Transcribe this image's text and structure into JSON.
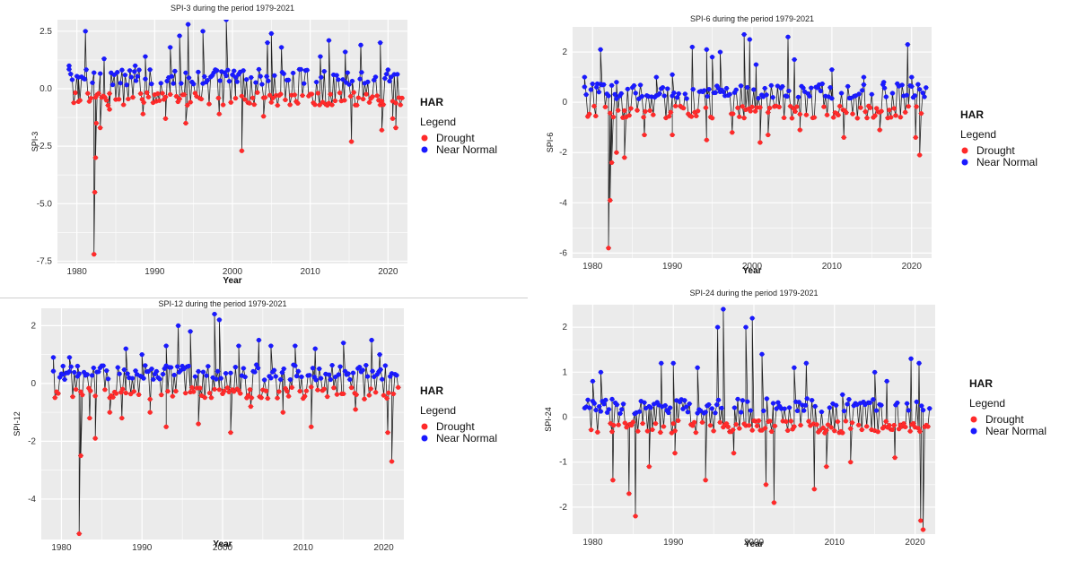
{
  "legend": {
    "title": "HAR",
    "subtitle": "Legend",
    "items": [
      {
        "label": "Drought",
        "color": "#ff2a2a"
      },
      {
        "label": "Near Normal",
        "color": "#1a1aff"
      }
    ]
  },
  "colors": {
    "panel_background": "#ebebeb",
    "grid": "#ffffff",
    "line": "#222222",
    "drought": "#ff2a2a",
    "near_normal": "#1a1aff"
  },
  "chart_data": [
    {
      "type": "scatter",
      "title": "SPI-3 during the period 1979-2021",
      "xlabel": "Year",
      "ylabel": "SPI-3",
      "xlim": [
        1977.5,
        2022.5
      ],
      "ylim": [
        -7.6,
        3.0
      ],
      "xticks": [
        1980,
        1990,
        2000,
        2010,
        2020
      ],
      "yticks": [
        2.5,
        0.0,
        -2.5,
        -5.0,
        -7.5
      ],
      "ytick_labels": [
        "2.5",
        "0.0",
        "-2.5",
        "-5.0",
        "-7.5"
      ],
      "grid": true,
      "legend_position": "right",
      "series": [
        {
          "name": "Drought",
          "x": [
            1982.2,
            1982.3,
            1982.4,
            1982.5,
            1983.0,
            1984.2,
            1988.5,
            1991.4,
            1994.0,
            1998.3,
            2001.2,
            2004.0,
            2015.3,
            2019.2,
            2020.6,
            2021.0
          ],
          "y": [
            -7.2,
            -4.5,
            -3.0,
            -1.5,
            -1.7,
            -0.9,
            -1.1,
            -1.3,
            -1.5,
            -1.1,
            -2.7,
            -1.2,
            -2.3,
            -1.8,
            -1.3,
            -1.7
          ]
        },
        {
          "name": "Near Normal",
          "x": [
            1979.0,
            1980.2,
            1981.1,
            1983.5,
            1987.5,
            1988.8,
            1992.0,
            1993.2,
            1994.3,
            1996.2,
            1999.2,
            2000.4,
            2004.5,
            2005.0,
            2006.3,
            2011.3,
            2012.4,
            2014.5,
            2016.5,
            2019.0
          ],
          "y": [
            1.0,
            0.5,
            2.5,
            1.3,
            1.0,
            1.4,
            1.8,
            2.3,
            2.8,
            2.5,
            3.0,
            0.5,
            2.0,
            2.4,
            1.8,
            1.4,
            2.1,
            1.6,
            1.9,
            2.0
          ]
        }
      ]
    },
    {
      "type": "scatter",
      "title": "SPI-6 during the period 1979-2021",
      "xlabel": "Year",
      "ylabel": "SPI-6",
      "xlim": [
        1977.5,
        2022.5
      ],
      "ylim": [
        -6.2,
        3.0
      ],
      "xticks": [
        1980,
        1990,
        2000,
        2010,
        2020
      ],
      "yticks": [
        2,
        0,
        -2,
        -4,
        -6
      ],
      "ytick_labels": [
        "2",
        "0",
        "-2",
        "-4",
        "-6"
      ],
      "grid": true,
      "legend_position": "right",
      "series": [
        {
          "name": "Drought",
          "x": [
            1982.0,
            1982.2,
            1982.4,
            1983.0,
            1984.0,
            1986.5,
            1990.0,
            1994.3,
            1997.5,
            2001.0,
            2002.0,
            2006.0,
            2011.5,
            2016.0,
            2020.5,
            2021.0
          ],
          "y": [
            -5.8,
            -3.9,
            -2.4,
            -2.0,
            -2.2,
            -1.3,
            -1.3,
            -1.5,
            -1.2,
            -1.6,
            -1.3,
            -1.1,
            -1.4,
            -1.1,
            -1.4,
            -2.1
          ]
        },
        {
          "name": "Near Normal",
          "x": [
            1979.0,
            1980.5,
            1981.0,
            1983.0,
            1988.0,
            1990.0,
            1992.5,
            1994.3,
            1995.0,
            1996.0,
            1999.0,
            1999.7,
            2000.5,
            2004.5,
            2005.3,
            2010.0,
            2014.0,
            2016.5,
            2019.5,
            2020.0
          ],
          "y": [
            1.0,
            0.6,
            2.1,
            0.8,
            1.0,
            1.1,
            2.2,
            2.1,
            1.8,
            2.0,
            2.7,
            2.5,
            1.5,
            2.6,
            1.7,
            1.3,
            1.0,
            0.8,
            2.3,
            1.0
          ]
        }
      ]
    },
    {
      "type": "scatter",
      "title": "SPI-12 during the period 1979-2021",
      "xlabel": "Year",
      "ylabel": "SPI-12",
      "xlim": [
        1977.5,
        2022.5
      ],
      "ylim": [
        -5.4,
        2.6
      ],
      "xticks": [
        1980,
        1990,
        2000,
        2010,
        2020
      ],
      "yticks": [
        2,
        0,
        -2,
        -4
      ],
      "ytick_labels": [
        "2",
        "0",
        "-2",
        "-4"
      ],
      "grid": true,
      "legend_position": "right",
      "series": [
        {
          "name": "Drought",
          "x": [
            1982.2,
            1982.4,
            1983.5,
            1984.2,
            1986.0,
            1987.5,
            1991.0,
            1993.0,
            1997.0,
            2001.0,
            2003.5,
            2007.5,
            2011.0,
            2016.5,
            2020.5,
            2021.0
          ],
          "y": [
            -5.2,
            -2.5,
            -1.2,
            -1.9,
            -1.0,
            -1.2,
            -1.0,
            -1.5,
            -1.4,
            -1.7,
            -0.8,
            -1.0,
            -1.5,
            -0.9,
            -1.7,
            -2.7
          ]
        },
        {
          "name": "Near Normal",
          "x": [
            1979.0,
            1980.2,
            1981.0,
            1982.0,
            1988.0,
            1990.0,
            1993.0,
            1994.5,
            1996.0,
            1999.0,
            1999.6,
            2002.0,
            2004.5,
            2006.0,
            2009.0,
            2011.5,
            2015.0,
            2018.5,
            2019.5
          ],
          "y": [
            0.9,
            0.6,
            0.9,
            0.6,
            1.2,
            1.0,
            1.3,
            2.0,
            1.8,
            2.4,
            2.2,
            1.3,
            1.5,
            1.3,
            1.3,
            1.2,
            1.4,
            1.5,
            1.0
          ]
        }
      ]
    },
    {
      "type": "scatter",
      "title": "SPI-24 during the period 1979-2021",
      "xlabel": "Year",
      "ylabel": "SPI-24",
      "xlim": [
        1977.5,
        2022.5
      ],
      "ylim": [
        -2.6,
        2.5
      ],
      "xticks": [
        1980,
        1990,
        2000,
        2010,
        2020
      ],
      "yticks": [
        2,
        1,
        0,
        -1,
        -2
      ],
      "ytick_labels": [
        "2",
        "1",
        "0",
        "-1",
        "-2"
      ],
      "grid": true,
      "legend_position": "right",
      "series": [
        {
          "name": "Drought",
          "x": [
            1982.5,
            1984.5,
            1985.3,
            1987.0,
            1990.2,
            1994.0,
            1997.5,
            2001.5,
            2002.5,
            2007.5,
            2009.0,
            2012.0,
            2017.5,
            2020.7,
            2021.0
          ],
          "y": [
            -1.4,
            -1.7,
            -2.2,
            -1.1,
            -0.8,
            -1.4,
            -0.8,
            -1.5,
            -1.9,
            -1.6,
            -1.1,
            -1.0,
            -0.9,
            -2.3,
            -2.5
          ]
        },
        {
          "name": "Near Normal",
          "x": [
            1980.0,
            1981.0,
            1982.4,
            1988.5,
            1990.0,
            1993.0,
            1995.5,
            1996.2,
            1999.0,
            1999.8,
            2001.0,
            2005.0,
            2006.5,
            2011.0,
            2015.0,
            2016.5,
            2019.5,
            2020.5
          ],
          "y": [
            0.8,
            1.0,
            0.4,
            1.2,
            1.2,
            1.1,
            2.0,
            2.4,
            2.0,
            2.2,
            1.4,
            1.1,
            1.2,
            0.5,
            1.0,
            0.8,
            1.3,
            1.2
          ]
        }
      ]
    }
  ]
}
